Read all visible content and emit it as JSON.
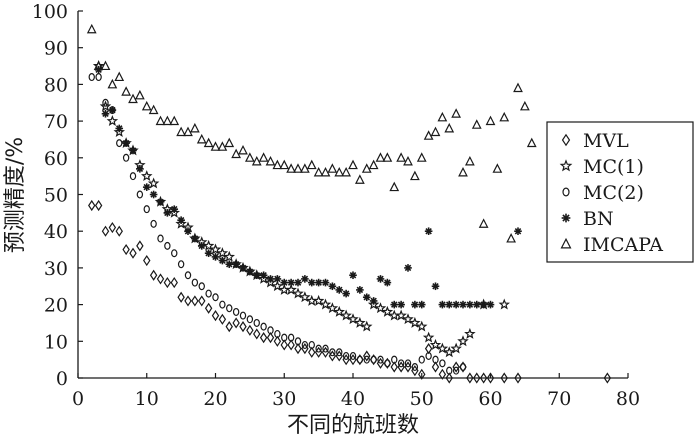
{
  "chart_data": {
    "type": "scatter",
    "xlabel": "不同的航班数",
    "ylabel": "预测精度/%",
    "xlim": [
      0,
      80
    ],
    "ylim": [
      0,
      100
    ],
    "xticks": [
      0,
      10,
      20,
      30,
      40,
      50,
      60,
      70,
      80
    ],
    "yticks": [
      0,
      10,
      20,
      30,
      40,
      50,
      60,
      70,
      80,
      90,
      100
    ],
    "grid": false,
    "legend_position": "right",
    "series": [
      {
        "name": "MVL",
        "marker": "diamond",
        "points": [
          [
            2,
            47
          ],
          [
            3,
            47
          ],
          [
            4,
            40
          ],
          [
            5,
            41
          ],
          [
            6,
            40
          ],
          [
            7,
            35
          ],
          [
            8,
            34
          ],
          [
            9,
            36
          ],
          [
            10,
            32
          ],
          [
            11,
            28
          ],
          [
            12,
            27
          ],
          [
            13,
            26
          ],
          [
            14,
            26
          ],
          [
            15,
            22
          ],
          [
            16,
            21
          ],
          [
            17,
            21
          ],
          [
            18,
            21
          ],
          [
            19,
            19
          ],
          [
            20,
            17
          ],
          [
            21,
            16
          ],
          [
            22,
            14
          ],
          [
            23,
            15
          ],
          [
            24,
            14
          ],
          [
            25,
            13
          ],
          [
            26,
            12
          ],
          [
            27,
            11
          ],
          [
            28,
            11
          ],
          [
            29,
            10
          ],
          [
            30,
            9
          ],
          [
            31,
            9
          ],
          [
            32,
            8
          ],
          [
            33,
            8
          ],
          [
            34,
            7
          ],
          [
            35,
            7
          ],
          [
            36,
            7
          ],
          [
            37,
            6
          ],
          [
            38,
            6
          ],
          [
            39,
            5
          ],
          [
            40,
            5
          ],
          [
            41,
            5
          ],
          [
            42,
            6
          ],
          [
            43,
            5
          ],
          [
            44,
            4
          ],
          [
            45,
            4
          ],
          [
            46,
            3
          ],
          [
            47,
            3
          ],
          [
            48,
            3
          ],
          [
            49,
            2
          ],
          [
            50,
            1
          ],
          [
            51,
            8
          ],
          [
            52,
            3
          ],
          [
            53,
            1
          ],
          [
            54,
            0
          ],
          [
            55,
            3
          ],
          [
            56,
            3
          ],
          [
            57,
            0
          ],
          [
            58,
            0
          ],
          [
            59,
            0
          ],
          [
            60,
            0
          ],
          [
            62,
            0
          ],
          [
            64,
            0
          ],
          [
            77,
            0
          ]
        ]
      },
      {
        "name": "MC(1)",
        "marker": "star",
        "points": [
          [
            3,
            85
          ],
          [
            4,
            74
          ],
          [
            5,
            70
          ],
          [
            6,
            67
          ],
          [
            7,
            64
          ],
          [
            8,
            62
          ],
          [
            9,
            58
          ],
          [
            10,
            55
          ],
          [
            11,
            53
          ],
          [
            12,
            48
          ],
          [
            13,
            46
          ],
          [
            14,
            45
          ],
          [
            15,
            42
          ],
          [
            16,
            41
          ],
          [
            17,
            38
          ],
          [
            18,
            37
          ],
          [
            19,
            36
          ],
          [
            20,
            35
          ],
          [
            21,
            34
          ],
          [
            22,
            33
          ],
          [
            23,
            31
          ],
          [
            24,
            30
          ],
          [
            25,
            29
          ],
          [
            26,
            28
          ],
          [
            27,
            27
          ],
          [
            28,
            26
          ],
          [
            29,
            25
          ],
          [
            30,
            24
          ],
          [
            31,
            24
          ],
          [
            32,
            23
          ],
          [
            33,
            22
          ],
          [
            34,
            21
          ],
          [
            35,
            21
          ],
          [
            36,
            20
          ],
          [
            37,
            19
          ],
          [
            38,
            18
          ],
          [
            39,
            17
          ],
          [
            40,
            16
          ],
          [
            41,
            15
          ],
          [
            42,
            14
          ],
          [
            43,
            20
          ],
          [
            44,
            19
          ],
          [
            45,
            18
          ],
          [
            46,
            17
          ],
          [
            47,
            17
          ],
          [
            48,
            16
          ],
          [
            49,
            15
          ],
          [
            50,
            14
          ],
          [
            51,
            11
          ],
          [
            52,
            9
          ],
          [
            53,
            8
          ],
          [
            54,
            7
          ],
          [
            55,
            8
          ],
          [
            56,
            10
          ],
          [
            57,
            12
          ],
          [
            59,
            20
          ],
          [
            62,
            20
          ]
        ]
      },
      {
        "name": "MC(2)",
        "marker": "circle",
        "points": [
          [
            2,
            82
          ],
          [
            3,
            82
          ],
          [
            4,
            75
          ],
          [
            5,
            73
          ],
          [
            6,
            64
          ],
          [
            7,
            60
          ],
          [
            8,
            55
          ],
          [
            9,
            50
          ],
          [
            10,
            46
          ],
          [
            11,
            42
          ],
          [
            12,
            38
          ],
          [
            13,
            36
          ],
          [
            14,
            34
          ],
          [
            15,
            31
          ],
          [
            16,
            28
          ],
          [
            17,
            26
          ],
          [
            18,
            25
          ],
          [
            19,
            23
          ],
          [
            20,
            22
          ],
          [
            21,
            20
          ],
          [
            22,
            19
          ],
          [
            23,
            18
          ],
          [
            24,
            17
          ],
          [
            25,
            16
          ],
          [
            26,
            15
          ],
          [
            27,
            14
          ],
          [
            28,
            13
          ],
          [
            29,
            12
          ],
          [
            30,
            11
          ],
          [
            31,
            11
          ],
          [
            32,
            10
          ],
          [
            33,
            9
          ],
          [
            34,
            9
          ],
          [
            35,
            8
          ],
          [
            36,
            8
          ],
          [
            37,
            7
          ],
          [
            38,
            7
          ],
          [
            39,
            6
          ],
          [
            40,
            6
          ],
          [
            41,
            5
          ],
          [
            42,
            5
          ],
          [
            43,
            5
          ],
          [
            44,
            5
          ],
          [
            45,
            4
          ],
          [
            46,
            5
          ],
          [
            47,
            4
          ],
          [
            48,
            4
          ],
          [
            49,
            3
          ],
          [
            50,
            5
          ],
          [
            51,
            6
          ],
          [
            52,
            5
          ],
          [
            53,
            4
          ],
          [
            54,
            2
          ],
          [
            55,
            2
          ],
          [
            56,
            3
          ]
        ]
      },
      {
        "name": "BN",
        "marker": "asterisk",
        "points": [
          [
            3,
            84
          ],
          [
            4,
            72
          ],
          [
            5,
            73
          ],
          [
            6,
            68
          ],
          [
            7,
            64
          ],
          [
            8,
            62
          ],
          [
            9,
            57
          ],
          [
            10,
            52
          ],
          [
            11,
            50
          ],
          [
            12,
            48
          ],
          [
            13,
            45
          ],
          [
            14,
            46
          ],
          [
            15,
            43
          ],
          [
            16,
            40
          ],
          [
            17,
            38
          ],
          [
            18,
            36
          ],
          [
            19,
            34
          ],
          [
            20,
            33
          ],
          [
            21,
            32
          ],
          [
            22,
            31
          ],
          [
            23,
            31
          ],
          [
            24,
            30
          ],
          [
            25,
            29
          ],
          [
            26,
            28
          ],
          [
            27,
            28
          ],
          [
            28,
            27
          ],
          [
            29,
            27
          ],
          [
            30,
            26
          ],
          [
            31,
            26
          ],
          [
            32,
            26
          ],
          [
            33,
            27
          ],
          [
            34,
            26
          ],
          [
            35,
            26
          ],
          [
            36,
            26
          ],
          [
            37,
            25
          ],
          [
            38,
            24
          ],
          [
            39,
            23
          ],
          [
            40,
            28
          ],
          [
            41,
            24
          ],
          [
            42,
            22
          ],
          [
            43,
            21
          ],
          [
            44,
            27
          ],
          [
            45,
            26
          ],
          [
            46,
            20
          ],
          [
            47,
            20
          ],
          [
            48,
            30
          ],
          [
            49,
            20
          ],
          [
            50,
            20
          ],
          [
            51,
            40
          ],
          [
            52,
            25
          ],
          [
            53,
            20
          ],
          [
            54,
            20
          ],
          [
            55,
            20
          ],
          [
            56,
            20
          ],
          [
            57,
            20
          ],
          [
            58,
            20
          ],
          [
            59,
            20
          ],
          [
            60,
            20
          ],
          [
            64,
            40
          ]
        ]
      },
      {
        "name": "IMCAPA",
        "marker": "triangle",
        "points": [
          [
            2,
            95
          ],
          [
            3,
            85
          ],
          [
            4,
            85
          ],
          [
            5,
            80
          ],
          [
            6,
            82
          ],
          [
            7,
            78
          ],
          [
            8,
            76
          ],
          [
            9,
            77
          ],
          [
            10,
            74
          ],
          [
            11,
            73
          ],
          [
            12,
            70
          ],
          [
            13,
            70
          ],
          [
            14,
            70
          ],
          [
            15,
            67
          ],
          [
            16,
            67
          ],
          [
            17,
            68
          ],
          [
            18,
            65
          ],
          [
            19,
            64
          ],
          [
            20,
            63
          ],
          [
            21,
            63
          ],
          [
            22,
            64
          ],
          [
            23,
            61
          ],
          [
            24,
            62
          ],
          [
            25,
            60
          ],
          [
            26,
            59
          ],
          [
            27,
            60
          ],
          [
            28,
            59
          ],
          [
            29,
            58
          ],
          [
            30,
            58
          ],
          [
            31,
            57
          ],
          [
            32,
            57
          ],
          [
            33,
            57
          ],
          [
            34,
            58
          ],
          [
            35,
            56
          ],
          [
            36,
            56
          ],
          [
            37,
            57
          ],
          [
            38,
            56
          ],
          [
            39,
            56
          ],
          [
            40,
            58
          ],
          [
            41,
            54
          ],
          [
            42,
            57
          ],
          [
            43,
            58
          ],
          [
            44,
            60
          ],
          [
            45,
            60
          ],
          [
            46,
            52
          ],
          [
            47,
            60
          ],
          [
            48,
            59
          ],
          [
            49,
            55
          ],
          [
            50,
            60
          ],
          [
            51,
            66
          ],
          [
            52,
            67
          ],
          [
            53,
            71
          ],
          [
            54,
            68
          ],
          [
            55,
            72
          ],
          [
            56,
            56
          ],
          [
            57,
            59
          ],
          [
            58,
            69
          ],
          [
            59,
            42
          ],
          [
            60,
            70
          ],
          [
            61,
            57
          ],
          [
            62,
            71
          ],
          [
            63,
            38
          ],
          [
            64,
            79
          ],
          [
            65,
            74
          ],
          [
            66,
            64
          ]
        ]
      }
    ]
  }
}
